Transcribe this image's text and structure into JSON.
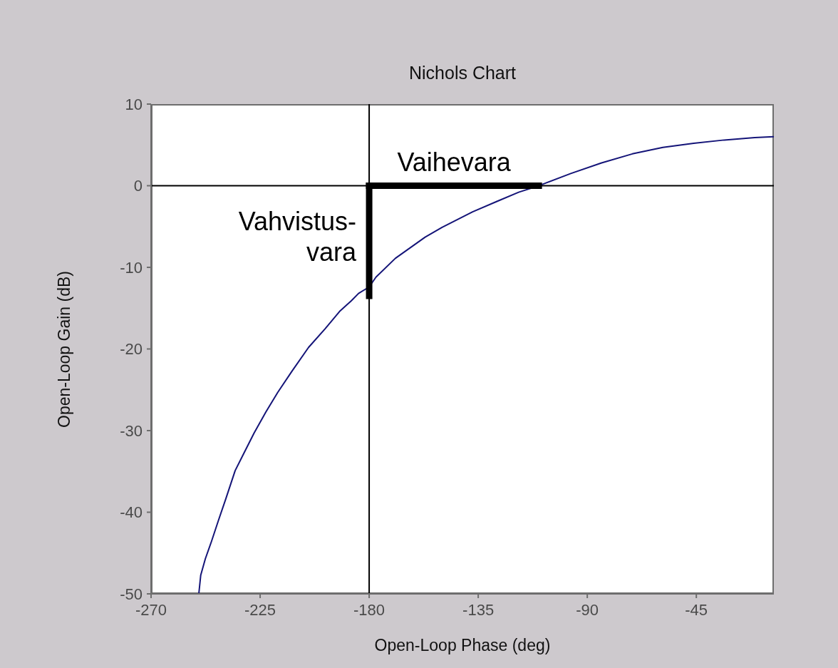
{
  "chart_data": {
    "type": "line",
    "title": "Nichols Chart",
    "xlabel": "Open-Loop Phase (deg)",
    "ylabel": "Open-Loop Gain (dB)",
    "xlim": [
      -270,
      -13
    ],
    "xticks": [
      -270,
      -225,
      -180,
      -135,
      -90,
      -45
    ],
    "ylim": [
      -50,
      10
    ],
    "yticks": [
      -50,
      -40,
      -30,
      -20,
      -10,
      0,
      10
    ],
    "series": [
      {
        "color": "#141478",
        "x": [
          -250.3,
          -249.5,
          -247.6,
          -245.1,
          -242.2,
          -239.2,
          -235.3,
          -231.4,
          -227.5,
          -222.6,
          -217.7,
          -211.8,
          -205.0,
          -198.1,
          -192.2,
          -187.4,
          -184.4,
          -180.0,
          -177.2,
          -169.2,
          -156.9,
          -149.9,
          -137.3,
          -127.1,
          -118.3,
          -110.0,
          -96.8,
          -84.1,
          -71.4,
          -58.8,
          -46.1,
          -33.5,
          -20.9,
          -13.2
        ],
        "values": [
          -50,
          -47.7,
          -45.7,
          -43.6,
          -41.0,
          -38.4,
          -34.9,
          -32.6,
          -30.3,
          -27.7,
          -25.3,
          -22.7,
          -19.8,
          -17.5,
          -15.4,
          -14.1,
          -13.2,
          -12.4,
          -11.2,
          -8.9,
          -6.3,
          -5.1,
          -3.2,
          -1.9,
          -0.8,
          0,
          1.5,
          2.8,
          3.9,
          4.7,
          5.2,
          5.6,
          5.9,
          6.0
        ]
      },
      {
        "name": "Vaihevara",
        "color": "#000000",
        "x": [
          -180,
          -110
        ],
        "values": [
          0,
          0
        ]
      },
      {
        "name": "Vahvistus-\nvara",
        "color": "#000000",
        "x": [
          -180,
          -180
        ],
        "values": [
          0,
          -13.5
        ]
      }
    ],
    "ref_lines": [
      {
        "axis": "x",
        "value": -180,
        "color": "#000000"
      },
      {
        "axis": "y",
        "value": 0,
        "color": "#000000"
      }
    ]
  }
}
